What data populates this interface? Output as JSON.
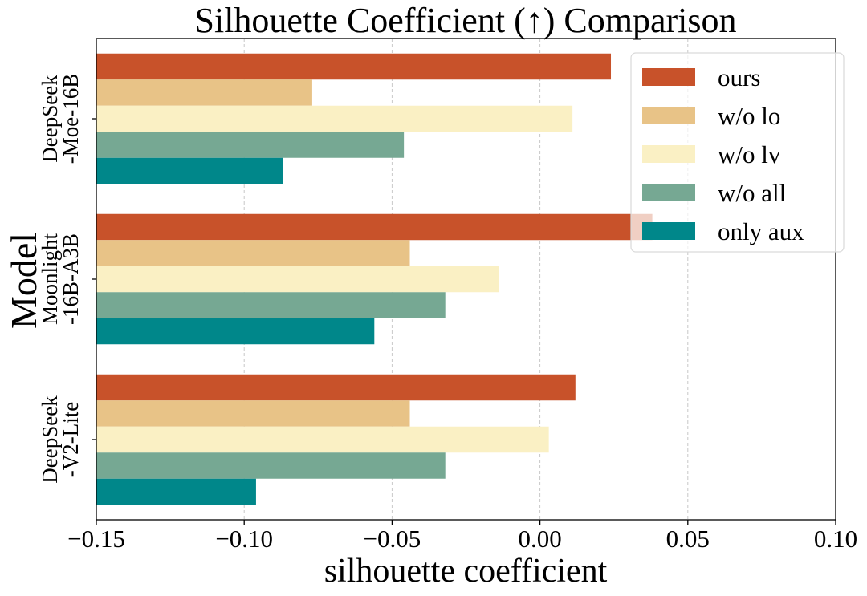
{
  "chart_data": {
    "type": "bar",
    "orientation": "horizontal",
    "title": "Silhouette Coefficient (↑) Comparison",
    "xlabel": "silhouette coefficient",
    "ylabel": "Model",
    "xlim": [
      -0.15,
      0.1
    ],
    "xticks": [
      -0.15,
      -0.1,
      -0.05,
      0.0,
      0.05,
      0.1
    ],
    "xtick_labels": [
      "−0.15",
      "−0.10",
      "−0.05",
      "0.00",
      "0.05",
      "0.10"
    ],
    "grid": "vertical dashed",
    "legend_position": "top-right",
    "categories": [
      {
        "lines": [
          "DeepSeek",
          "-Moe-16B"
        ]
      },
      {
        "lines": [
          "Moonlight",
          "-16B-A3B"
        ]
      },
      {
        "lines": [
          "DeepSeek",
          "-V2-Lite"
        ]
      }
    ],
    "series": [
      {
        "name": "ours",
        "color": "#c8522a",
        "values": [
          0.024,
          0.038,
          0.012
        ]
      },
      {
        "name": "w/o lo",
        "color": "#e8c387",
        "values": [
          -0.077,
          -0.044,
          -0.044
        ]
      },
      {
        "name": "w/o lv",
        "color": "#faf0c4",
        "values": [
          0.011,
          -0.014,
          0.003
        ]
      },
      {
        "name": "w/o all",
        "color": "#76a893",
        "values": [
          -0.046,
          -0.032,
          -0.032
        ]
      },
      {
        "name": "only aux",
        "color": "#00878a",
        "values": [
          -0.087,
          -0.056,
          -0.096
        ]
      }
    ]
  }
}
